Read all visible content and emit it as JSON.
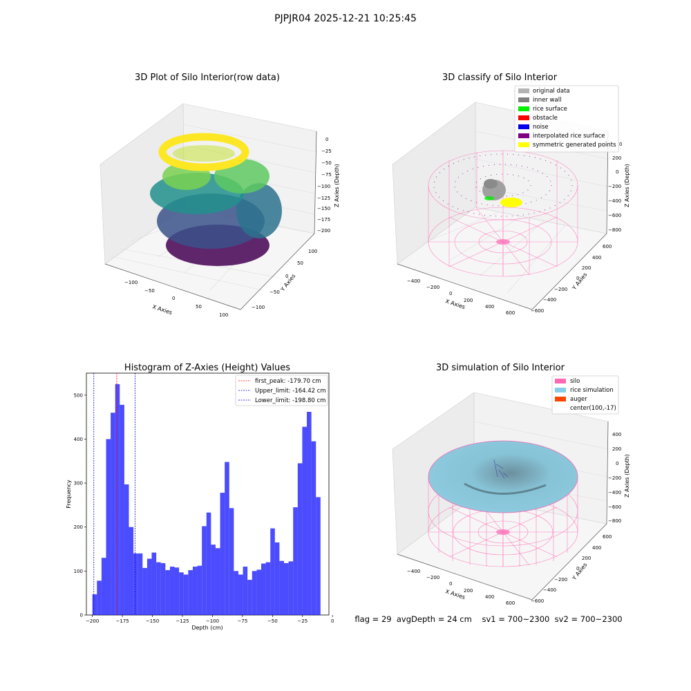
{
  "figure": {
    "suptitle": "PJPJR04 2025-12-21 10:25:45",
    "footer": "flag = 29  avgDepth = 24 cm    sv1 = 700~2300  sv2 = 700~2300"
  },
  "panels": {
    "raw": {
      "title": "3D Plot of Silo Interior(row data)",
      "x_label": "X Axies",
      "y_label": "Y Axies",
      "z_label": "Z Axies (Depth)",
      "x_ticks": [
        "−100",
        "−50",
        "0",
        "50",
        "100"
      ],
      "y_ticks": [
        "100",
        "50",
        "0",
        "−50",
        "−100"
      ],
      "z_ticks": [
        "0",
        "−25",
        "−50",
        "−75",
        "−100",
        "−125",
        "−150",
        "−175",
        "−200"
      ],
      "colormap": "viridis"
    },
    "classify": {
      "title": "3D classify of Silo Interior",
      "x_label": "X Axies",
      "y_label": "Y Axies",
      "z_label": "Z Axies (Depth)",
      "x_ticks": [
        "−400",
        "−200",
        "0",
        "200",
        "400",
        "600"
      ],
      "y_ticks": [
        "600",
        "400",
        "200",
        "0",
        "−200",
        "−400",
        "−600"
      ],
      "z_ticks": [
        "200",
        "0",
        "−200",
        "−400",
        "−600",
        "−800"
      ],
      "z_top_partial": "0",
      "legend": [
        {
          "label": "original data",
          "color": "#b3b3b3"
        },
        {
          "label": "inner wall",
          "color": "#808080"
        },
        {
          "label": "rice surface",
          "color": "#00ee00"
        },
        {
          "label": "obstacle",
          "color": "#ff0000"
        },
        {
          "label": "noise",
          "color": "#0000ee"
        },
        {
          "label": "interpolated rice surface",
          "color": "#800080"
        },
        {
          "label": "symmetric generated points",
          "color": "#ffff00"
        }
      ]
    },
    "histogram": {
      "title": "Histogram of Z-Axies (Height) Values",
      "xlabel": "Depth (cm)",
      "ylabel": "Frequency",
      "legend": [
        {
          "label": "first_peak: -179.70 cm",
          "color": "#ff0000"
        },
        {
          "label": "Upper_limit: -164.42 cm",
          "color": "#0000cc"
        },
        {
          "label": "Lower_limit: -198.80 cm",
          "color": "#0000cc"
        }
      ]
    },
    "simulation": {
      "title": "3D simulation of Silo Interior",
      "x_label": "X Axies",
      "y_label": "Y Axies",
      "z_label": "Z Axies (Depth)",
      "x_ticks": [
        "−400",
        "−200",
        "0",
        "200",
        "400",
        "600"
      ],
      "y_ticks": [
        "600",
        "400",
        "200",
        "0",
        "−200",
        "−400",
        "−600"
      ],
      "z_ticks": [
        "400",
        "200",
        "0",
        "−200",
        "−400",
        "−600",
        "−800"
      ],
      "legend": [
        {
          "label": "silo",
          "color": "#ff69b4"
        },
        {
          "label": "rice simulation",
          "color": "#87ceeb"
        },
        {
          "label": "auger",
          "color": "#ff4500"
        },
        {
          "label": "center(100,-17)",
          "color": "none"
        }
      ]
    }
  },
  "chart_data": {
    "type": "bar",
    "title": "Histogram of Z-Axies (Height) Values",
    "xlabel": "Depth (cm)",
    "ylabel": "Frequency",
    "xlim": [
      -205,
      -3
    ],
    "ylim": [
      0,
      550
    ],
    "x_ticks": [
      -200,
      -175,
      -150,
      -125,
      -100,
      -75,
      -50,
      -25,
      0
    ],
    "y_ticks": [
      0,
      100,
      200,
      300,
      400,
      500
    ],
    "bin_start": -200,
    "bin_width": 3.8,
    "values": [
      47,
      78,
      130,
      400,
      460,
      525,
      478,
      297,
      200,
      140,
      140,
      107,
      128,
      142,
      120,
      118,
      102,
      110,
      108,
      97,
      92,
      102,
      110,
      112,
      202,
      233,
      160,
      152,
      278,
      348,
      243,
      100,
      92,
      110,
      80,
      100,
      103,
      117,
      120,
      197,
      165,
      123,
      118,
      122,
      245,
      345,
      428,
      462,
      395,
      268
    ],
    "bar_color": "#0000ff",
    "bar_alpha": 0.7,
    "vlines": [
      {
        "name": "first_peak",
        "x": -179.7,
        "color": "#ff0000"
      },
      {
        "name": "Upper_limit",
        "x": -164.42,
        "color": "#0000cc"
      },
      {
        "name": "Lower_limit",
        "x": -198.8,
        "color": "#0000cc"
      }
    ],
    "legend_position": "top-right",
    "grid": false
  }
}
